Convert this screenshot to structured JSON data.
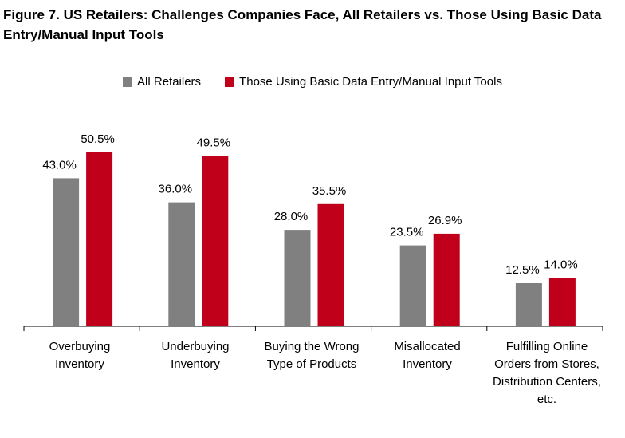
{
  "title": "Figure 7. US Retailers: Challenges Companies Face, All Retailers vs. Those Using Basic Data Entry/Manual Input Tools",
  "colors": {
    "all_retailers": "#808080",
    "basic_tools": "#C0001A"
  },
  "chart_data": {
    "type": "bar",
    "title": "Figure 7. US Retailers: Challenges Companies Face, All Retailers vs. Those Using Basic Data Entry/Manual Input Tools",
    "categories": [
      "Overbuying Inventory",
      "Underbuying Inventory",
      "Buying the Wrong Type of Products",
      "Misallocated Inventory",
      "Fulfilling Online Orders from Stores, Distribution Centers, etc."
    ],
    "series": [
      {
        "name": "All Retailers",
        "values": [
          43.0,
          36.0,
          28.0,
          23.5,
          12.5
        ],
        "labels": [
          "43.0%",
          "36.0%",
          "28.0%",
          "23.5%",
          "12.5%"
        ]
      },
      {
        "name": "Those Using Basic Data Entry/Manual Input Tools",
        "values": [
          50.5,
          49.5,
          35.5,
          26.9,
          14.0
        ],
        "labels": [
          "50.5%",
          "49.5%",
          "35.5%",
          "26.9%",
          "14.0%"
        ]
      }
    ],
    "xlabel": "",
    "ylabel": "",
    "ylim": [
      0,
      55
    ],
    "grid": false,
    "legend": "top"
  }
}
